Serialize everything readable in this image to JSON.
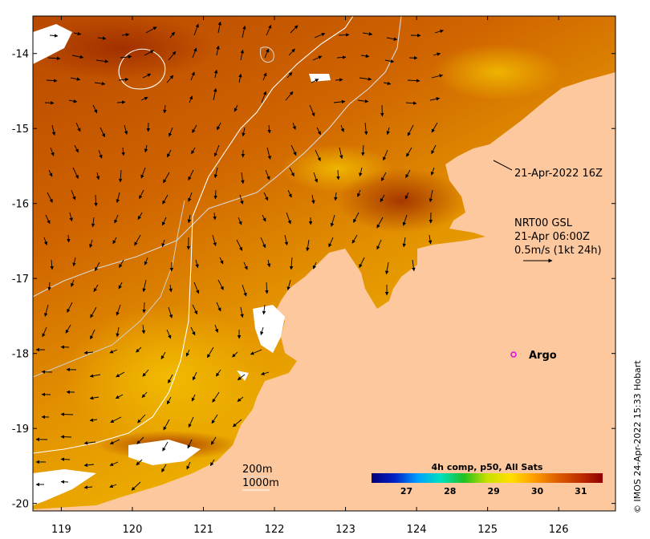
{
  "map": {
    "x_axis": {
      "ticks": [
        "119",
        "120",
        "121",
        "122",
        "123",
        "124",
        "125",
        "126"
      ]
    },
    "y_axis": {
      "ticks": [
        "-14",
        "-15",
        "-16",
        "-17",
        "-18",
        "-19",
        "-20"
      ]
    },
    "lon_range": [
      118.6,
      126.8
    ],
    "lat_range": [
      -20.1,
      -13.5
    ]
  },
  "annotations": {
    "pass_time": "21-Apr-2022 16Z",
    "current_source": "NRT00 GSL",
    "current_time": "21-Apr 06:00Z",
    "current_scale": "0.5m/s (1kt 24h)",
    "argo_label": "Argo",
    "contour_200": "200m",
    "contour_1000": "1000m"
  },
  "colorbar": {
    "title": "4h comp, p50, All Sats",
    "ticks": [
      "27",
      "28",
      "29",
      "30",
      "31"
    ],
    "range": [
      26.2,
      31.5
    ],
    "colors": [
      "#00007a",
      "#0020c8",
      "#00a0ff",
      "#00e0c0",
      "#20c020",
      "#c8e000",
      "#ffe000",
      "#ffa000",
      "#e06000",
      "#c03000",
      "#900000"
    ]
  },
  "colors": {
    "land": "#fdc89d",
    "no_data": "#ffffff",
    "warm_sst": "#b84a00",
    "argo_marker": "#e000e0"
  },
  "credit": "© IMOS 24-Apr-2022 15:33 Hobart"
}
